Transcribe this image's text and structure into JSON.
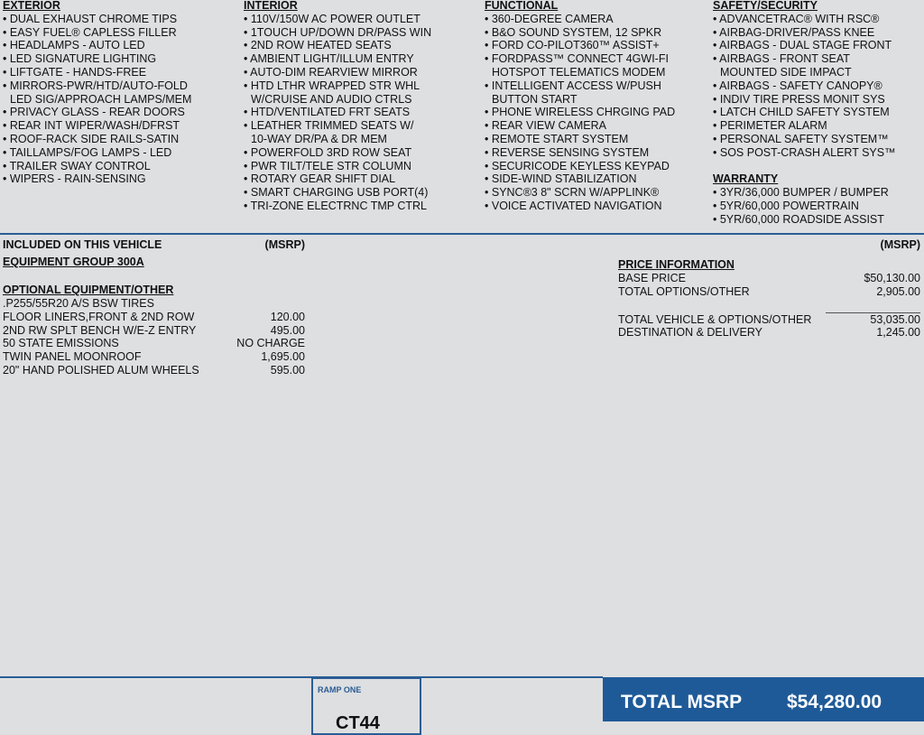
{
  "features": {
    "columns": [
      {
        "sections": [
          {
            "heading": "EXTERIOR",
            "items": [
              "DUAL EXHAUST CHROME TIPS",
              "EASY FUEL® CAPLESS FILLER",
              "HEADLAMPS - AUTO LED",
              "LED SIGNATURE LIGHTING",
              "LIFTGATE - HANDS-FREE",
              [
                "MIRRORS-PWR/HTD/AUTO-FOLD",
                "LED SIG/APPROACH LAMPS/MEM"
              ],
              "PRIVACY GLASS - REAR DOORS",
              "REAR INT WIPER/WASH/DFRST",
              "ROOF-RACK SIDE RAILS-SATIN",
              "TAILLAMPS/FOG LAMPS - LED",
              "TRAILER SWAY CONTROL",
              "WIPERS - RAIN-SENSING"
            ]
          }
        ]
      },
      {
        "sections": [
          {
            "heading": "INTERIOR",
            "items": [
              "110V/150W AC POWER OUTLET",
              "1TOUCH UP/DOWN DR/PASS WIN",
              "2ND ROW HEATED SEATS",
              "AMBIENT LIGHT/ILLUM ENTRY",
              "AUTO-DIM REARVIEW MIRROR",
              [
                "HTD LTHR WRAPPED STR WHL",
                "W/CRUISE AND AUDIO CTRLS"
              ],
              "HTD/VENTILATED FRT SEATS",
              [
                "LEATHER TRIMMED SEATS W/",
                "10-WAY DR/PA & DR MEM"
              ],
              "POWERFOLD 3RD ROW SEAT",
              "PWR TILT/TELE STR COLUMN",
              "ROTARY GEAR SHIFT DIAL",
              "SMART CHARGING USB PORT(4)",
              "TRI-ZONE ELECTRNC TMP CTRL"
            ]
          }
        ]
      },
      {
        "sections": [
          {
            "heading": "FUNCTIONAL",
            "items": [
              "360-DEGREE CAMERA",
              "B&O SOUND SYSTEM, 12 SPKR",
              "FORD CO-PILOT360™ ASSIST+",
              [
                "FORDPASS™ CONNECT 4GWI-FI",
                "HOTSPOT TELEMATICS MODEM"
              ],
              [
                "INTELLIGENT ACCESS W/PUSH",
                "BUTTON START"
              ],
              "PHONE WIRELESS CHRGING PAD",
              "REAR VIEW CAMERA",
              "REMOTE START SYSTEM",
              "REVERSE SENSING SYSTEM",
              "SECURICODE KEYLESS KEYPAD",
              "SIDE-WIND STABILIZATION",
              "SYNC®3 8\" SCRN W/APPLINK®",
              "VOICE ACTIVATED NAVIGATION"
            ]
          }
        ]
      },
      {
        "sections": [
          {
            "heading": "SAFETY/SECURITY",
            "items": [
              "ADVANCETRAC® WITH RSC®",
              "AIRBAG-DRIVER/PASS KNEE",
              "AIRBAGS - DUAL STAGE FRONT",
              [
                "AIRBAGS - FRONT SEAT",
                "MOUNTED SIDE IMPACT"
              ],
              "AIRBAGS - SAFETY CANOPY®",
              "INDIV TIRE PRESS MONIT SYS",
              "LATCH CHILD SAFETY SYSTEM",
              "PERIMETER ALARM",
              "PERSONAL SAFETY SYSTEM™",
              "SOS POST-CRASH ALERT SYS™"
            ]
          },
          {
            "heading": "WARRANTY",
            "items": [
              "3YR/36,000 BUMPER / BUMPER",
              "5YR/60,000 POWERTRAIN",
              "5YR/60,000 ROADSIDE ASSIST"
            ]
          }
        ]
      }
    ]
  },
  "included": {
    "heading": "INCLUDED ON THIS VEHICLE",
    "msrp_label": "(MSRP)",
    "group": "EQUIPMENT GROUP 300A",
    "optional_heading": "OPTIONAL EQUIPMENT/OTHER",
    "options": [
      {
        "name": ".P255/55R20 A/S BSW TIRES"
      },
      {
        "name": "FLOOR LINERS,FRONT & 2ND ROW",
        "price": "120.00"
      },
      {
        "name": "2ND RW SPLT BENCH W/E-Z ENTRY",
        "price": "495.00"
      },
      {
        "name": "50 STATE EMISSIONS",
        "price": "NO CHARGE"
      },
      {
        "name": "TWIN PANEL MOONROOF",
        "price": "1,695.00"
      },
      {
        "name": "20\" HAND POLISHED ALUM WHEELS",
        "price": "595.00"
      }
    ]
  },
  "price_info": {
    "msrp_label": "(MSRP)",
    "heading": "PRICE INFORMATION",
    "rows": [
      {
        "label": "BASE PRICE",
        "value": "$50,130.00"
      },
      {
        "label": "TOTAL OPTIONS/OTHER",
        "value": "2,905.00"
      },
      {
        "label": "TOTAL VEHICLE & OPTIONS/OTHER",
        "value": "53,035.00"
      },
      {
        "label": "DESTINATION & DELIVERY",
        "value": "1,245.00"
      }
    ]
  },
  "footer": {
    "ramp": "RAMP ONE",
    "code": "CT44",
    "total_label": "TOTAL MSRP",
    "total_value": "$54,280.00"
  }
}
